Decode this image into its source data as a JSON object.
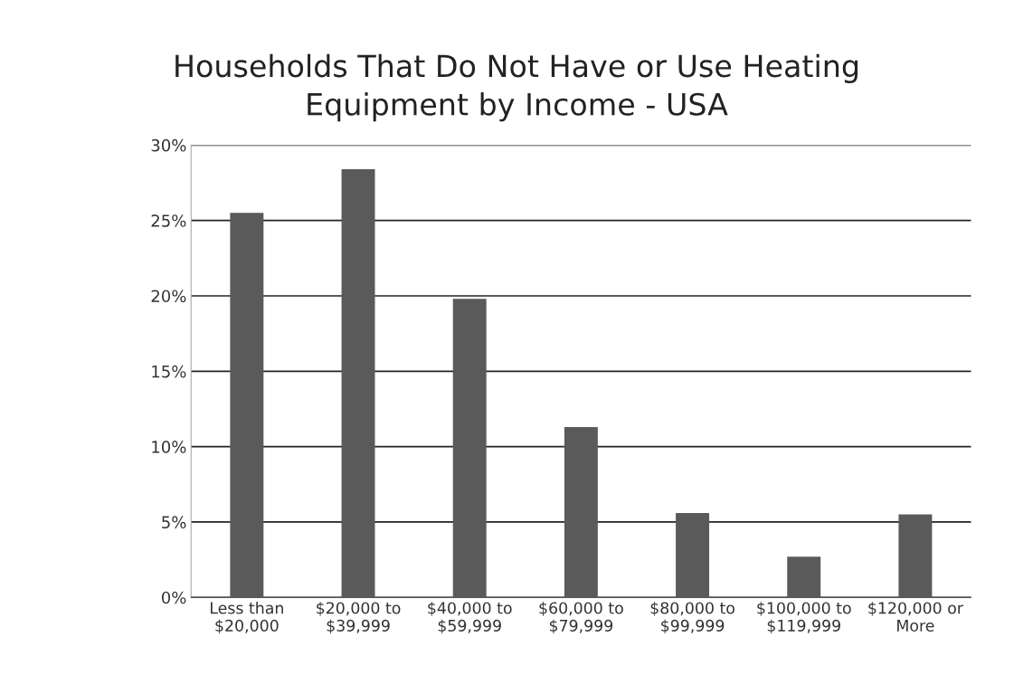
{
  "chart_data": {
    "type": "bar",
    "title": "Households That Do Not Have or Use Heating\nEquipment by Income - USA",
    "categories": [
      "Less than\n$20,000",
      "$20,000 to\n$39,999",
      "$40,000 to\n$59,999",
      "$60,000 to\n$79,999",
      "$80,000 to\n$99,999",
      "$100,000 to\n$119,999",
      "$120,000 or\nMore"
    ],
    "values": [
      25.5,
      28.4,
      19.8,
      11.3,
      5.6,
      2.7,
      5.5
    ],
    "color": "#5a5a5a",
    "ylim": [
      0,
      30
    ],
    "yticks": [
      {
        "value": 0,
        "label": "0%"
      },
      {
        "value": 5,
        "label": "5%"
      },
      {
        "value": 10,
        "label": "10%"
      },
      {
        "value": 15,
        "label": "15%"
      },
      {
        "value": 20,
        "label": "20%"
      },
      {
        "value": 25,
        "label": "25%"
      },
      {
        "value": 30,
        "label": "30%"
      }
    ],
    "grid": "y",
    "legend": false
  }
}
